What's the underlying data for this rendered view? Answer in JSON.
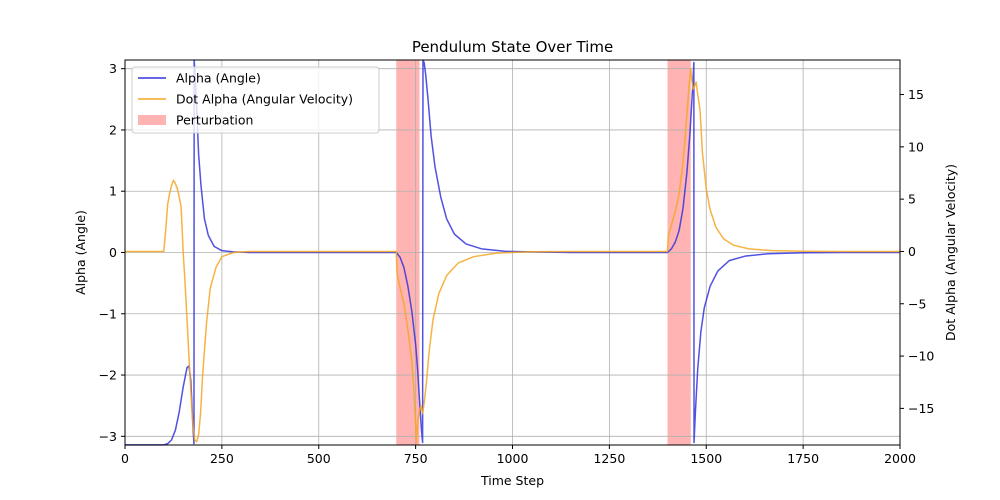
{
  "chart_data": {
    "type": "line",
    "title": "Pendulum State Over Time",
    "xlabel": "Time Step",
    "ylabel_left": "Alpha (Angle)",
    "ylabel_right": "Dot Alpha (Angular Velocity)",
    "xlim": [
      0,
      2000
    ],
    "ylim_left": [
      -3.1416,
      3.1416
    ],
    "ylim_right": [
      -18.5,
      18.3
    ],
    "x_ticks": [
      0,
      250,
      500,
      750,
      1000,
      1250,
      1500,
      1750,
      2000
    ],
    "y_left_ticks": [
      -3,
      -2,
      -1,
      0,
      1,
      2,
      3
    ],
    "y_right_ticks": [
      -15,
      -10,
      -5,
      0,
      5,
      10,
      15
    ],
    "grid": true,
    "legend_location": "upper left",
    "legend": [
      {
        "label": "Alpha (Angle)",
        "color": "#3333dd",
        "kind": "line"
      },
      {
        "label": "Dot Alpha (Angular Velocity)",
        "color": "#f5a623",
        "kind": "line"
      },
      {
        "label": "Perturbation",
        "color": "#ff8080",
        "kind": "patch"
      }
    ],
    "perturbations": [
      [
        700,
        760
      ],
      [
        1400,
        1460
      ]
    ],
    "series": [
      {
        "name": "Alpha (Angle)",
        "axis": "left",
        "color": "#3333dd",
        "points": [
          [
            0,
            -3.14
          ],
          [
            100,
            -3.14
          ],
          [
            110,
            -3.12
          ],
          [
            120,
            -3.06
          ],
          [
            130,
            -2.9
          ],
          [
            140,
            -2.6
          ],
          [
            150,
            -2.2
          ],
          [
            160,
            -1.88
          ],
          [
            165,
            -1.85
          ],
          [
            170,
            -2.1
          ],
          [
            175,
            -2.8
          ],
          [
            178,
            -3.12
          ],
          [
            178.5,
            3.14
          ],
          [
            182,
            2.8
          ],
          [
            186,
            2.2
          ],
          [
            190,
            1.6
          ],
          [
            196,
            1.1
          ],
          [
            205,
            0.55
          ],
          [
            215,
            0.28
          ],
          [
            230,
            0.1
          ],
          [
            250,
            0.03
          ],
          [
            280,
            0.01
          ],
          [
            320,
            0
          ],
          [
            700,
            0
          ],
          [
            710,
            -0.08
          ],
          [
            720,
            -0.25
          ],
          [
            730,
            -0.55
          ],
          [
            740,
            -0.95
          ],
          [
            750,
            -1.5
          ],
          [
            755,
            -1.9
          ],
          [
            760,
            -2.4
          ],
          [
            765,
            -2.9
          ],
          [
            768,
            -3.1
          ],
          [
            769,
            3.14
          ],
          [
            772,
            3.1
          ],
          [
            776,
            2.9
          ],
          [
            782,
            2.5
          ],
          [
            790,
            1.9
          ],
          [
            800,
            1.4
          ],
          [
            815,
            0.9
          ],
          [
            830,
            0.55
          ],
          [
            850,
            0.3
          ],
          [
            880,
            0.14
          ],
          [
            920,
            0.06
          ],
          [
            980,
            0.02
          ],
          [
            1050,
            0.01
          ],
          [
            1150,
            0
          ],
          [
            1400,
            0
          ],
          [
            1410,
            0.06
          ],
          [
            1420,
            0.17
          ],
          [
            1430,
            0.36
          ],
          [
            1440,
            0.72
          ],
          [
            1450,
            1.3
          ],
          [
            1458,
            1.95
          ],
          [
            1465,
            2.7
          ],
          [
            1468,
            3.1
          ],
          [
            1468.5,
            -3.1
          ],
          [
            1472,
            -2.6
          ],
          [
            1478,
            -1.9
          ],
          [
            1486,
            -1.3
          ],
          [
            1495,
            -0.9
          ],
          [
            1510,
            -0.55
          ],
          [
            1530,
            -0.3
          ],
          [
            1560,
            -0.13
          ],
          [
            1600,
            -0.06
          ],
          [
            1660,
            -0.02
          ],
          [
            1750,
            -0.005
          ],
          [
            1850,
            0
          ],
          [
            2000,
            0
          ]
        ]
      },
      {
        "name": "Dot Alpha (Angular Velocity)",
        "axis": "right",
        "color": "#f5a623",
        "points": [
          [
            0,
            0
          ],
          [
            100,
            0
          ],
          [
            105,
            2
          ],
          [
            110,
            4.5
          ],
          [
            115,
            5.5
          ],
          [
            120,
            6.3
          ],
          [
            125,
            6.8
          ],
          [
            130,
            6.5
          ],
          [
            135,
            6
          ],
          [
            140,
            5.2
          ],
          [
            145,
            4.2
          ],
          [
            150,
            0
          ],
          [
            155,
            -3
          ],
          [
            160,
            -6.5
          ],
          [
            165,
            -10
          ],
          [
            170,
            -13.5
          ],
          [
            175,
            -16.5
          ],
          [
            180,
            -18
          ],
          [
            185,
            -18.2
          ],
          [
            190,
            -17.5
          ],
          [
            195,
            -15.5
          ],
          [
            200,
            -12
          ],
          [
            210,
            -7
          ],
          [
            220,
            -3.5
          ],
          [
            235,
            -1.5
          ],
          [
            250,
            -0.5
          ],
          [
            280,
            -0.1
          ],
          [
            320,
            0
          ],
          [
            700,
            0
          ],
          [
            702,
            -2
          ],
          [
            710,
            -3.5
          ],
          [
            720,
            -5
          ],
          [
            730,
            -7.5
          ],
          [
            740,
            -10.5
          ],
          [
            745,
            -13
          ],
          [
            750,
            -16.5
          ],
          [
            752,
            -18.3
          ],
          [
            756,
            -16
          ],
          [
            760,
            -15.2
          ],
          [
            764,
            -14.8
          ],
          [
            768,
            -15.5
          ],
          [
            772,
            -14.5
          ],
          [
            778,
            -12.5
          ],
          [
            785,
            -9.5
          ],
          [
            795,
            -6.5
          ],
          [
            810,
            -4
          ],
          [
            830,
            -2.3
          ],
          [
            860,
            -1.1
          ],
          [
            900,
            -0.5
          ],
          [
            960,
            -0.15
          ],
          [
            1050,
            -0.03
          ],
          [
            1150,
            0
          ],
          [
            1400,
            0
          ],
          [
            1402,
            1.5
          ],
          [
            1410,
            2.5
          ],
          [
            1420,
            3.8
          ],
          [
            1430,
            5.5
          ],
          [
            1440,
            8.5
          ],
          [
            1448,
            12
          ],
          [
            1455,
            15.5
          ],
          [
            1460,
            17.5
          ],
          [
            1463,
            16.3
          ],
          [
            1466,
            15.5
          ],
          [
            1470,
            15.8
          ],
          [
            1474,
            16.2
          ],
          [
            1478,
            15
          ],
          [
            1484,
            13.5
          ],
          [
            1490,
            9.5
          ],
          [
            1500,
            6
          ],
          [
            1510,
            4
          ],
          [
            1525,
            2.3
          ],
          [
            1545,
            1.2
          ],
          [
            1570,
            0.6
          ],
          [
            1610,
            0.25
          ],
          [
            1670,
            0.08
          ],
          [
            1750,
            0.02
          ],
          [
            1850,
            0
          ],
          [
            2000,
            0
          ]
        ]
      }
    ]
  }
}
